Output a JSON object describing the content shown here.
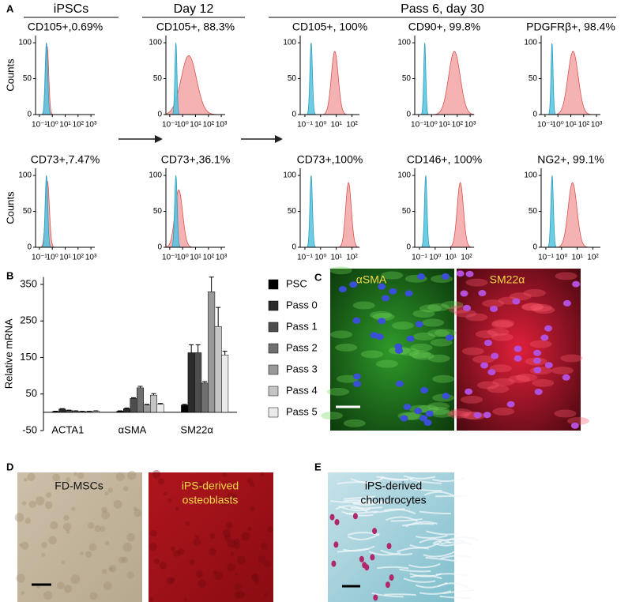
{
  "panel_labels": [
    "A",
    "B",
    "C",
    "D",
    "E"
  ],
  "panel_a": {
    "groups": [
      "iPSCs",
      "Day 12",
      "Pass 6, day 30"
    ],
    "y_label": "Counts",
    "histograms": [
      {
        "title": "CD105+,0.69%",
        "xlim": [
          0.05,
          2000
        ],
        "xticks": [
          {
            "value": 0.1,
            "label": "10⁻¹"
          },
          {
            "value": 1,
            "label": "10⁰"
          },
          {
            "value": 10,
            "label": "10¹"
          },
          {
            "value": 100,
            "label": "10²"
          },
          {
            "value": 1000,
            "label": "10³"
          }
        ],
        "ylim": [
          0,
          110
        ],
        "yticks": [
          0,
          50,
          100
        ],
        "isotype": {
          "peak": 0.35,
          "width": 0.1,
          "count": 100
        },
        "stain": {
          "peak": 0.4,
          "width": 0.12,
          "count": 95
        }
      },
      {
        "title": "CD105+, 88.3%",
        "xlim": [
          0.05,
          2000
        ],
        "xticks": [
          {
            "value": 0.1,
            "label": "10⁻¹"
          },
          {
            "value": 1,
            "label": "10⁰"
          },
          {
            "value": 10,
            "label": "10¹"
          },
          {
            "value": 100,
            "label": "10²"
          },
          {
            "value": 1000,
            "label": "10³"
          }
        ],
        "ylim": [
          0,
          110
        ],
        "yticks": [
          0,
          50,
          100
        ],
        "isotype": {
          "peak": 0.3,
          "width": 0.08,
          "count": 100
        },
        "stain": {
          "peak": 3,
          "width": 0.6,
          "count": 82
        }
      },
      {
        "title": "CD105+, 100%",
        "xlim": [
          0.05,
          300
        ],
        "xticks": [
          {
            "value": 0.1,
            "label": "10⁻¹"
          },
          {
            "value": 1,
            "label": "10⁰"
          },
          {
            "value": 10,
            "label": "10¹"
          },
          {
            "value": 100,
            "label": "10²"
          }
        ],
        "ylim": [
          0,
          110
        ],
        "yticks": [
          0,
          50,
          100
        ],
        "isotype": {
          "peak": 0.25,
          "width": 0.08,
          "count": 100
        },
        "stain": {
          "peak": 8,
          "width": 0.22,
          "count": 88
        }
      },
      {
        "title": "CD90+, 99.8%",
        "xlim": [
          0.05,
          2000
        ],
        "xticks": [
          {
            "value": 0.1,
            "label": "10⁻¹"
          },
          {
            "value": 1,
            "label": "10⁰"
          },
          {
            "value": 10,
            "label": "10¹"
          },
          {
            "value": 100,
            "label": "10²"
          },
          {
            "value": 1000,
            "label": "10³"
          }
        ],
        "ylim": [
          0,
          110
        ],
        "yticks": [
          0,
          50,
          100
        ],
        "isotype": {
          "peak": 0.3,
          "width": 0.08,
          "count": 100
        },
        "stain": {
          "peak": 60,
          "width": 0.45,
          "count": 88
        }
      },
      {
        "title": "PDGFRβ+, 98.4%",
        "xlim": [
          0.05,
          2000
        ],
        "xticks": [
          {
            "value": 0.1,
            "label": "10⁻¹"
          },
          {
            "value": 1,
            "label": "10⁰"
          },
          {
            "value": 10,
            "label": "10¹"
          },
          {
            "value": 100,
            "label": "10²"
          },
          {
            "value": 1000,
            "label": "10³"
          }
        ],
        "ylim": [
          0,
          110
        ],
        "yticks": [
          0,
          50,
          100
        ],
        "isotype": {
          "peak": 0.35,
          "width": 0.08,
          "count": 100
        },
        "stain": {
          "peak": 15,
          "width": 0.4,
          "count": 88
        }
      },
      {
        "title": "CD73+,7.47%",
        "xlim": [
          0.05,
          2000
        ],
        "xticks": [
          {
            "value": 0.1,
            "label": "10⁻¹"
          },
          {
            "value": 1,
            "label": "10⁰"
          },
          {
            "value": 10,
            "label": "10¹"
          },
          {
            "value": 100,
            "label": "10²"
          },
          {
            "value": 1000,
            "label": "10³"
          }
        ],
        "ylim": [
          0,
          110
        ],
        "yticks": [
          0,
          50,
          100
        ],
        "isotype": {
          "peak": 0.35,
          "width": 0.1,
          "count": 100
        },
        "stain": {
          "peak": 0.42,
          "width": 0.15,
          "count": 92
        }
      },
      {
        "title": "CD73+,36.1%",
        "xlim": [
          0.05,
          2000
        ],
        "xticks": [
          {
            "value": 0.1,
            "label": "10⁻¹"
          },
          {
            "value": 1,
            "label": "10⁰"
          },
          {
            "value": 10,
            "label": "10¹"
          },
          {
            "value": 100,
            "label": "10²"
          },
          {
            "value": 1000,
            "label": "10³"
          }
        ],
        "ylim": [
          0,
          110
        ],
        "yticks": [
          0,
          50,
          100
        ],
        "isotype": {
          "peak": 0.3,
          "width": 0.1,
          "count": 100
        },
        "stain": {
          "peak": 0.5,
          "width": 0.3,
          "count": 80
        }
      },
      {
        "title": "CD73+,100%",
        "xlim": [
          0.05,
          300
        ],
        "xticks": [
          {
            "value": 0.1,
            "label": "10⁻¹"
          },
          {
            "value": 1,
            "label": "10⁰"
          },
          {
            "value": 10,
            "label": "10¹"
          },
          {
            "value": 100,
            "label": "10²"
          }
        ],
        "ylim": [
          0,
          110
        ],
        "yticks": [
          0,
          50,
          100
        ],
        "isotype": {
          "peak": 0.25,
          "width": 0.08,
          "count": 100
        },
        "stain": {
          "peak": 60,
          "width": 0.18,
          "count": 90
        }
      },
      {
        "title": "CD146+, 100%",
        "xlim": [
          0.05,
          300
        ],
        "xticks": [
          {
            "value": 0.1,
            "label": "10⁻¹"
          },
          {
            "value": 1,
            "label": "10⁰"
          },
          {
            "value": 10,
            "label": "10¹"
          },
          {
            "value": 100,
            "label": "10²"
          }
        ],
        "ylim": [
          0,
          110
        ],
        "yticks": [
          0,
          50,
          100
        ],
        "isotype": {
          "peak": 0.25,
          "width": 0.08,
          "count": 100
        },
        "stain": {
          "peak": 40,
          "width": 0.2,
          "count": 90
        }
      },
      {
        "title": "NG2+, 99.1%",
        "xlim": [
          0.05,
          300
        ],
        "xticks": [
          {
            "value": 0.1,
            "label": "10⁻¹"
          },
          {
            "value": 1,
            "label": "10⁰"
          },
          {
            "value": 10,
            "label": "10¹"
          },
          {
            "value": 100,
            "label": "10²"
          }
        ],
        "ylim": [
          0,
          110
        ],
        "yticks": [
          0,
          50,
          100
        ],
        "isotype": {
          "peak": 0.25,
          "width": 0.08,
          "count": 100
        },
        "stain": {
          "peak": 5,
          "width": 0.28,
          "count": 90
        }
      }
    ]
  },
  "chart_data": {
    "type": "bar",
    "y_label": "Relative mRNA",
    "categories": [
      "ACTA1",
      "αSMA",
      "SM22α"
    ],
    "series": [
      {
        "name": "PSC",
        "color": "#000000",
        "values": [
          2,
          3,
          20
        ],
        "errors": [
          1,
          1,
          2
        ]
      },
      {
        "name": "Pass 0",
        "color": "#2b2b2b",
        "values": [
          9,
          10,
          163
        ],
        "errors": [
          1,
          2,
          22
        ]
      },
      {
        "name": "Pass 1",
        "color": "#4d4d4d",
        "values": [
          5,
          38,
          163
        ],
        "errors": [
          1,
          2,
          22
        ]
      },
      {
        "name": "Pass 2",
        "color": "#707070",
        "values": [
          3,
          67,
          80
        ],
        "errors": [
          1,
          4,
          4
        ]
      },
      {
        "name": "Pass 3",
        "color": "#999999",
        "values": [
          2,
          20,
          330
        ],
        "errors": [
          1,
          2,
          40
        ]
      },
      {
        "name": "Pass 4",
        "color": "#c4c4c4",
        "values": [
          2,
          47,
          235
        ],
        "errors": [
          1,
          4,
          52
        ]
      },
      {
        "name": "Pass 5",
        "color": "#ebebeb",
        "values": [
          3,
          22,
          157
        ],
        "errors": [
          1,
          2,
          10
        ]
      }
    ],
    "ylim": [
      -50,
      370
    ],
    "yticks": [
      -50,
      50,
      150,
      250,
      350
    ]
  },
  "panel_c": {
    "labels": [
      "αSMA",
      "SM22α"
    ]
  },
  "panel_d": {
    "labels": [
      [
        "FD-MSCs"
      ],
      [
        "iPS-derived",
        "osteoblasts"
      ]
    ]
  },
  "panel_e": {
    "label": [
      "iPS-derived",
      "chondrocytes"
    ]
  }
}
